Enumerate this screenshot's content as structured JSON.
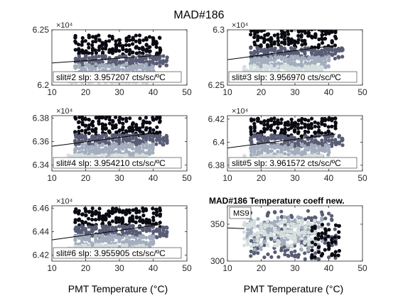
{
  "figure_title": "MAD#186",
  "xlabel": "PMT Temperature (°C)",
  "colors": {
    "hot": "#0a0a12",
    "warm": "#585c74",
    "cool": "#a3adbd",
    "cold": "#d5e0de",
    "fit_line": "#000000",
    "axes": "#262626"
  },
  "chart_data": [
    {
      "type": "scatter",
      "exponent_label": "×10⁴",
      "annotation": "slit#2 slp: 3.957207 cts/sc/ºC",
      "xlim": [
        10,
        50
      ],
      "ylim": [
        62000,
        62500
      ],
      "xticks": [
        10,
        20,
        30,
        40,
        50
      ],
      "yticks": [
        62000,
        62500
      ],
      "ytick_labels": [
        "6.2",
        "6.25"
      ],
      "fit_line": {
        "x": [
          10,
          42
        ],
        "y": [
          62200,
          62270
        ]
      },
      "bands": [
        {
          "x_min": 17,
          "x_max": 42,
          "y_min": 62270,
          "y_max": 62450,
          "color_key": "hot"
        },
        {
          "x_min": 17,
          "x_max": 44,
          "y_min": 62170,
          "y_max": 62270,
          "color_key": "warm"
        },
        {
          "x_min": 17,
          "x_max": 40,
          "y_min": 62080,
          "y_max": 62190,
          "color_key": "cool"
        },
        {
          "x_min": 15,
          "x_max": 38,
          "y_min": 62020,
          "y_max": 62110,
          "color_key": "cold"
        }
      ]
    },
    {
      "type": "scatter",
      "exponent_label": "×10⁴",
      "annotation": "slit#3 slp: 3.956970 cts/sc/ºC",
      "xlim": [
        10,
        50
      ],
      "ylim": [
        62500,
        63000
      ],
      "xticks": [
        10,
        20,
        30,
        40,
        50
      ],
      "yticks": [
        62500,
        63000
      ],
      "ytick_labels": [
        "6.25",
        "6.3"
      ],
      "fit_line": {
        "x": [
          10,
          42
        ],
        "y": [
          62730,
          62860
        ]
      },
      "bands": [
        {
          "x_min": 17,
          "x_max": 42,
          "y_min": 62840,
          "y_max": 63020,
          "color_key": "hot"
        },
        {
          "x_min": 17,
          "x_max": 44,
          "y_min": 62740,
          "y_max": 62840,
          "color_key": "warm"
        },
        {
          "x_min": 17,
          "x_max": 40,
          "y_min": 62660,
          "y_max": 62760,
          "color_key": "cool"
        },
        {
          "x_min": 15,
          "x_max": 38,
          "y_min": 62590,
          "y_max": 62680,
          "color_key": "cold"
        }
      ]
    },
    {
      "type": "scatter",
      "exponent_label": "×10⁴",
      "annotation": "slit#4 slp: 3.954210 cts/sc/ºC",
      "xlim": [
        10,
        50
      ],
      "ylim": [
        63350,
        63820
      ],
      "xticks": [
        10,
        20,
        30,
        40,
        50
      ],
      "yticks": [
        63400,
        63600,
        63800
      ],
      "ytick_labels": [
        "6.34",
        "6.36",
        "6.38"
      ],
      "fit_line": {
        "x": [
          10,
          42
        ],
        "y": [
          63560,
          63680
        ]
      },
      "bands": [
        {
          "x_min": 17,
          "x_max": 42,
          "y_min": 63650,
          "y_max": 63810,
          "color_key": "hot"
        },
        {
          "x_min": 17,
          "x_max": 44,
          "y_min": 63570,
          "y_max": 63660,
          "color_key": "warm"
        },
        {
          "x_min": 17,
          "x_max": 40,
          "y_min": 63480,
          "y_max": 63580,
          "color_key": "cool"
        },
        {
          "x_min": 15,
          "x_max": 38,
          "y_min": 63390,
          "y_max": 63490,
          "color_key": "cold"
        }
      ]
    },
    {
      "type": "scatter",
      "exponent_label": "×10⁴",
      "annotation": "slit#5 slp: 3.961572 cts/sc/ºC",
      "xlim": [
        10,
        50
      ],
      "ylim": [
        63750,
        64230
      ],
      "xticks": [
        10,
        20,
        30,
        40,
        50
      ],
      "yticks": [
        63800,
        64000,
        64200
      ],
      "ytick_labels": [
        "6.38",
        "6.4",
        "6.42"
      ],
      "fit_line": {
        "x": [
          10,
          42
        ],
        "y": [
          63950,
          64070
        ]
      },
      "bands": [
        {
          "x_min": 17,
          "x_max": 42,
          "y_min": 64050,
          "y_max": 64210,
          "color_key": "hot"
        },
        {
          "x_min": 17,
          "x_max": 44,
          "y_min": 63960,
          "y_max": 64060,
          "color_key": "warm"
        },
        {
          "x_min": 17,
          "x_max": 40,
          "y_min": 63880,
          "y_max": 63980,
          "color_key": "cool"
        },
        {
          "x_min": 15,
          "x_max": 38,
          "y_min": 63790,
          "y_max": 63890,
          "color_key": "cold"
        }
      ]
    },
    {
      "type": "scatter",
      "exponent_label": "×10⁴",
      "annotation": "slit#6 slp: 3.955905 cts/sc/ºC",
      "xlim": [
        10,
        50
      ],
      "ylim": [
        64150,
        64620
      ],
      "xticks": [
        10,
        20,
        30,
        40,
        50
      ],
      "yticks": [
        64200,
        64400,
        64600
      ],
      "ytick_labels": [
        "6.42",
        "6.44",
        "6.46"
      ],
      "fit_line": {
        "x": [
          10,
          42
        ],
        "y": [
          64330,
          64460
        ]
      },
      "bands": [
        {
          "x_min": 17,
          "x_max": 42,
          "y_min": 64440,
          "y_max": 64600,
          "color_key": "hot"
        },
        {
          "x_min": 17,
          "x_max": 44,
          "y_min": 64350,
          "y_max": 64450,
          "color_key": "warm"
        },
        {
          "x_min": 17,
          "x_max": 40,
          "y_min": 64270,
          "y_max": 64370,
          "color_key": "cool"
        },
        {
          "x_min": 15,
          "x_max": 38,
          "y_min": 64190,
          "y_max": 64290,
          "color_key": "cold"
        }
      ]
    },
    {
      "type": "scatter",
      "title": "MAD#186  Temperature coeff new.",
      "legend_entry": "MS9",
      "xlim": [
        10,
        50
      ],
      "ylim": [
        300,
        375
      ],
      "xticks": [
        10,
        20,
        30,
        40,
        50
      ],
      "yticks": [
        300,
        350
      ],
      "ytick_labels": [
        "300",
        "350"
      ],
      "fit_line": {
        "x": [
          10,
          15
        ],
        "y": [
          345,
          344
        ]
      },
      "bands": [
        {
          "x_min": 17,
          "x_max": 42,
          "y_min": 302,
          "y_max": 368,
          "color_key": "warm"
        },
        {
          "x_min": 16,
          "x_max": 38,
          "y_min": 315,
          "y_max": 360,
          "color_key": "cool"
        },
        {
          "x_min": 15,
          "x_max": 36,
          "y_min": 320,
          "y_max": 355,
          "color_key": "cold"
        },
        {
          "x_min": 35,
          "x_max": 43,
          "y_min": 305,
          "y_max": 350,
          "color_key": "hot"
        }
      ]
    }
  ]
}
